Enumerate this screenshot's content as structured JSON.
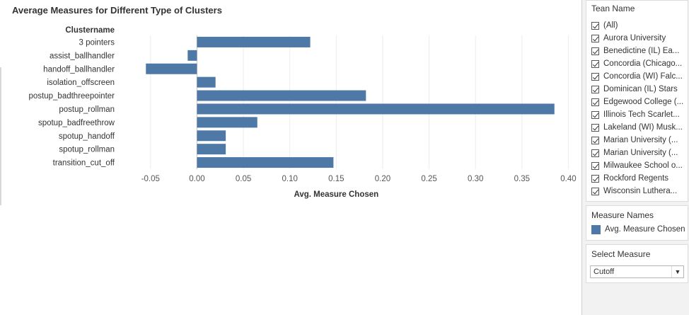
{
  "title": "Average Measures for Different Type of Clusters",
  "chart_data": {
    "type": "bar",
    "orientation": "horizontal",
    "category_axis_title": "Clustername",
    "categories": [
      "3 pointers",
      "assist_ballhandler",
      "handoff_ballhandler",
      "isolation_offscreen",
      "postup_badthreepointer",
      "postup_rollman",
      "spotup_badfreethrow",
      "spotup_handoff",
      "spotup_rollman",
      "transition_cut_off"
    ],
    "series": [
      {
        "name": "Avg. Measure Chosen",
        "values": [
          0.122,
          -0.01,
          -0.055,
          0.02,
          0.182,
          0.385,
          0.065,
          0.031,
          0.031,
          0.147
        ]
      }
    ],
    "xlabel": "Avg. Measure Chosen",
    "xticks": [
      "-0.05",
      "0.00",
      "0.05",
      "0.10",
      "0.15",
      "0.20",
      "0.25",
      "0.30",
      "0.35",
      "0.40"
    ],
    "xlim": [
      -0.075,
      0.405
    ],
    "bar_color": "#4e79a7",
    "grid": true
  },
  "filter": {
    "title": "Tean Name",
    "items": [
      "(All)",
      "Aurora University",
      "Benedictine (IL) Ea...",
      "Concordia (Chicago...",
      "Concordia (WI) Falc...",
      "Dominican (IL) Stars",
      "Edgewood College (...",
      "Illinois Tech Scarlet...",
      "Lakeland (WI) Musk...",
      "Marian University (...",
      "Marian University (...",
      "Milwaukee School o...",
      "Rockford Regents",
      "Wisconsin Luthera..."
    ]
  },
  "legend": {
    "title": "Measure Names",
    "item": "Avg. Measure Chosen",
    "color": "#4e79a7"
  },
  "select": {
    "title": "Select Measure",
    "value": "Cutoff"
  }
}
